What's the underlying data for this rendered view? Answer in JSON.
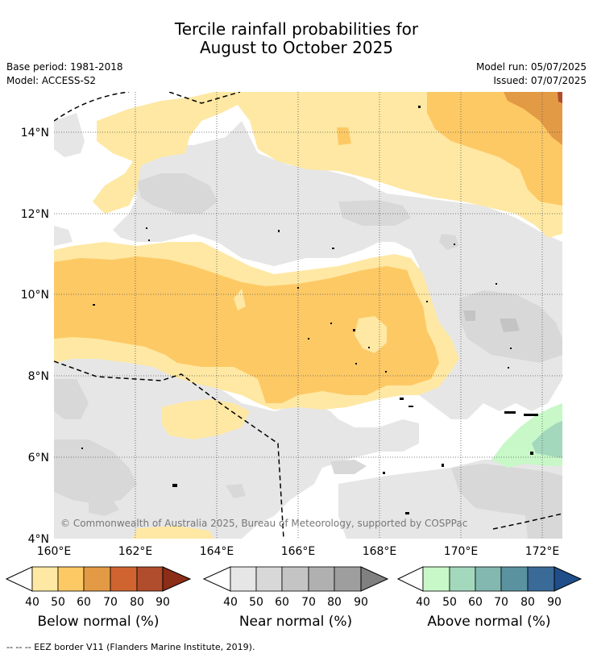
{
  "title": {
    "line1": "Tercile rainfall probabilities for",
    "line2": "August to October 2025"
  },
  "meta": {
    "base_period": "Base period: 1981-2018",
    "model": "Model: ACCESS-S2",
    "model_run": "Model run: 05/07/2025",
    "issued": "Issued: 07/07/2025"
  },
  "map": {
    "copyright": "© Commonwealth of Australia 2025, Bureau of Meteorology, supported by COSPPac",
    "lat_labels": [
      "14°N",
      "12°N",
      "10°N",
      "8°N",
      "6°N",
      "4°N"
    ],
    "lon_labels": [
      "160°E",
      "162°E",
      "164°E",
      "166°E",
      "168°E",
      "170°E",
      "172°E"
    ],
    "regions": [
      "below-normal",
      "near-normal",
      "above-normal"
    ],
    "colors": {
      "below": [
        "#fee8a3",
        "#fdc965",
        "#e39a44",
        "#cf6430",
        "#b04d2c",
        "#8c2d18"
      ],
      "near": [
        "#e6e6e6",
        "#d8d8d8",
        "#c4c4c4",
        "#b0b0b0",
        "#9e9e9e",
        "#808080"
      ],
      "above": [
        "#c8f8c8",
        "#a4d8bd",
        "#82b8b0",
        "#5a92a0",
        "#3a6a98",
        "#1f4e8a"
      ]
    }
  },
  "colorbars": [
    {
      "name": "below",
      "title": "Below normal (%)",
      "ticks": [
        "40",
        "50",
        "60",
        "70",
        "80",
        "90"
      ]
    },
    {
      "name": "near",
      "title": "Near normal (%)",
      "ticks": [
        "40",
        "50",
        "60",
        "70",
        "80",
        "90"
      ]
    },
    {
      "name": "above",
      "title": "Above normal (%)",
      "ticks": [
        "40",
        "50",
        "60",
        "70",
        "80",
        "90"
      ]
    }
  ],
  "footer": "--  --  -- EEZ border V11 (Flanders Marine Institute, 2019)."
}
